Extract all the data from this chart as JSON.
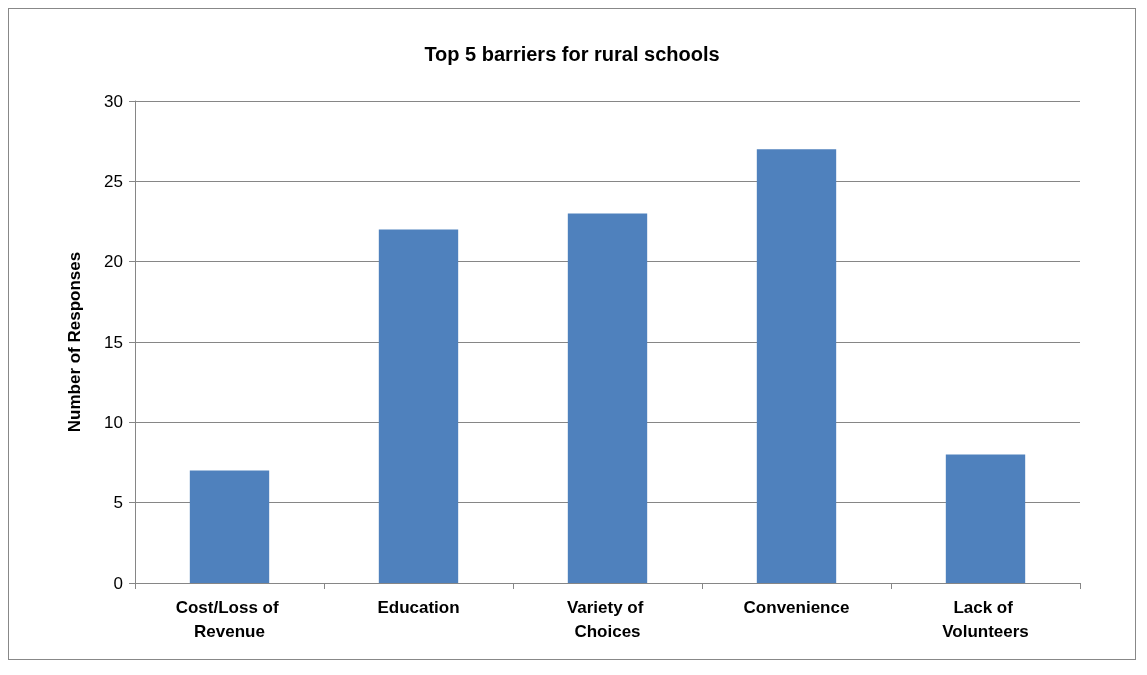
{
  "chart_data": {
    "type": "bar",
    "title": "Top 5 barriers for rural schools",
    "ylabel": "Number of Responses",
    "categories": [
      "Cost/Loss of Revenue",
      "Education",
      "Variety of Choices",
      "Convenience",
      "Lack of Volunteers"
    ],
    "values": [
      7,
      22,
      23,
      27,
      8
    ],
    "color": "#4f81bd",
    "ylim": [
      0,
      30
    ],
    "yticks": [
      0,
      5,
      10,
      15,
      20,
      25,
      30
    ],
    "grid": "y"
  }
}
